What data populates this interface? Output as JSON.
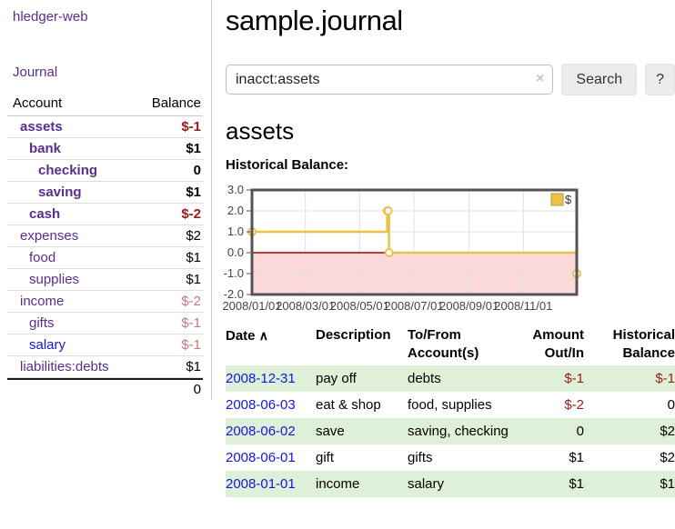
{
  "sidebar": {
    "brand": "hledger-web",
    "nav": {
      "journal": "Journal"
    },
    "accounts_table": {
      "headers": {
        "account": "Account",
        "balance": "Balance"
      },
      "rows": [
        {
          "name": "assets",
          "depth": 0,
          "bold": true,
          "balance": "$-1",
          "neg": "strong"
        },
        {
          "name": "bank",
          "depth": 1,
          "bold": true,
          "balance": "$1"
        },
        {
          "name": "checking",
          "depth": 2,
          "bold": true,
          "balance": "0"
        },
        {
          "name": "saving",
          "depth": 2,
          "bold": true,
          "balance": "$1"
        },
        {
          "name": "cash",
          "depth": 1,
          "bold": true,
          "balance": "$-2",
          "neg": "strong"
        },
        {
          "name": "expenses",
          "depth": 0,
          "bold": false,
          "balance": "$2"
        },
        {
          "name": "food",
          "depth": 1,
          "bold": false,
          "balance": "$1"
        },
        {
          "name": "supplies",
          "depth": 1,
          "bold": false,
          "balance": "$1"
        },
        {
          "name": "income",
          "depth": 0,
          "bold": false,
          "balance": "$-2",
          "neg": "soft"
        },
        {
          "name": "gifts",
          "depth": 1,
          "bold": false,
          "balance": "$-1",
          "neg": "soft"
        },
        {
          "name": "salary",
          "depth": 1,
          "bold": false,
          "balance": "$-1",
          "neg": "soft",
          "link_color": "blue"
        },
        {
          "name": "liabilities:debts",
          "depth": 0,
          "bold": false,
          "balance": "$1"
        }
      ],
      "total": "0"
    }
  },
  "header": {
    "title": "sample.journal"
  },
  "search": {
    "value": "inacct:assets",
    "clear_icon": "×",
    "button_label": "Search",
    "help_label": "?"
  },
  "account_page": {
    "heading": "assets",
    "chart_label": "Historical Balance:"
  },
  "chart_data": {
    "type": "line",
    "step": true,
    "title": "Historical Balance:",
    "series": [
      {
        "name": "$",
        "color": "#e9c348",
        "points": [
          {
            "date": "2008-01-01",
            "x": 0,
            "y": 1
          },
          {
            "date": "2008-06-01",
            "x": 152,
            "y": 2
          },
          {
            "date": "2008-06-02",
            "x": 153,
            "y": 2
          },
          {
            "date": "2008-06-03",
            "x": 154,
            "y": 0
          },
          {
            "date": "2008-12-31",
            "x": 365,
            "y": -1
          }
        ]
      }
    ],
    "x_ticks": [
      {
        "label": "2008/01/01",
        "x": 0
      },
      {
        "label": "2008/03/01",
        "x": 60
      },
      {
        "label": "2008/05/01",
        "x": 121
      },
      {
        "label": "2008/07/01",
        "x": 182
      },
      {
        "label": "2008/09/01",
        "x": 244
      },
      {
        "label": "2008/11/01",
        "x": 305
      }
    ],
    "y_ticks": [
      3.0,
      2.0,
      1.0,
      0.0,
      -1.0,
      -2.0
    ],
    "xlim": [
      0,
      365
    ],
    "ylim": [
      -2,
      3
    ],
    "grid": true,
    "negative_region_color": "#fbd9d9",
    "zero_line_color": "#a40000",
    "legend": {
      "label": "$",
      "position": "top-right"
    }
  },
  "register_table": {
    "headers": {
      "date": "Date",
      "sort_asc_icon": "∧",
      "description": "Description",
      "accounts": "To/From Account(s)",
      "amount": "Amount Out/In",
      "balance": "Historical Balance"
    },
    "rows": [
      {
        "date": "2008-12-31",
        "description": "pay off",
        "accounts": "debts",
        "amount": "$-1",
        "amount_neg": true,
        "balance": "$-1",
        "balance_neg": true,
        "striped": true
      },
      {
        "date": "2008-06-03",
        "description": "eat & shop",
        "accounts": "food, supplies",
        "amount": "$-2",
        "amount_neg": true,
        "balance": "0",
        "balance_neg": false,
        "striped": false
      },
      {
        "date": "2008-06-02",
        "description": "save",
        "accounts": "saving, checking",
        "amount": "0",
        "amount_neg": false,
        "balance": "$2",
        "balance_neg": false,
        "striped": true
      },
      {
        "date": "2008-06-01",
        "description": "gift",
        "accounts": "gifts",
        "amount": "$1",
        "amount_neg": false,
        "balance": "$2",
        "balance_neg": false,
        "striped": false
      },
      {
        "date": "2008-01-01",
        "description": "income",
        "accounts": "salary",
        "amount": "$1",
        "amount_neg": false,
        "balance": "$1",
        "balance_neg": false,
        "striped": true
      }
    ]
  },
  "colors": {
    "link_purple": "#5b2d90",
    "link_blue": "#1515e0",
    "negative_strong": "#9b1c20",
    "negative_soft": "#c47878",
    "row_stripe_green": "#dff0d8",
    "series_gold": "#e9c348",
    "negative_region_pink": "#fbd9d9",
    "zero_line_red": "#a40000"
  }
}
